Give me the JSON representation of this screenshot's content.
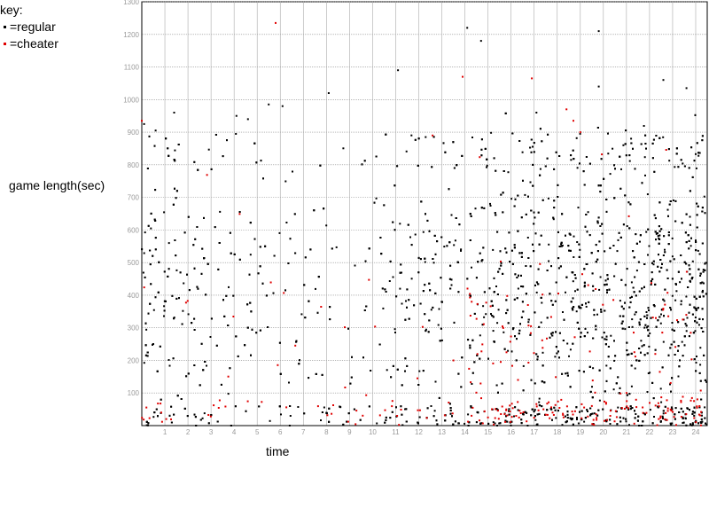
{
  "legend": {
    "title": "key:",
    "items": [
      {
        "label": "=regular",
        "color": "#000000"
      },
      {
        "label": "=cheater",
        "color": "#e00000"
      }
    ]
  },
  "chart_data": {
    "type": "scatter",
    "title": "",
    "xlabel": "time",
    "ylabel": "game length(sec)",
    "xlim": [
      0,
      24.5
    ],
    "ylim": [
      0,
      1300
    ],
    "xticks": [
      1,
      2,
      3,
      4,
      5,
      6,
      7,
      8,
      9,
      10,
      11,
      12,
      13,
      14,
      15,
      16,
      17,
      18,
      19,
      20,
      21,
      22,
      23,
      24
    ],
    "yticks": [
      100,
      200,
      300,
      400,
      500,
      600,
      700,
      800,
      900,
      1000,
      1100,
      1200,
      1300
    ],
    "grid": true,
    "legend_position": "top-left",
    "point_counts": {
      "regular": 2900,
      "cheater": 260
    },
    "series": [
      {
        "name": "regular",
        "color": "#000000",
        "sample_points": [
          [
            0.1,
            925
          ],
          [
            0.6,
            905
          ],
          [
            1.4,
            960
          ],
          [
            4.1,
            950
          ],
          [
            4.6,
            940
          ],
          [
            5.5,
            985
          ],
          [
            6.1,
            980
          ],
          [
            11.1,
            1090
          ],
          [
            14.1,
            1220
          ],
          [
            14.7,
            1180
          ],
          [
            19.8,
            1210
          ],
          [
            22.6,
            1060
          ],
          [
            23.6,
            1035
          ],
          [
            8.1,
            1020
          ],
          [
            19.8,
            1040
          ],
          [
            17.1,
            960
          ],
          [
            12.3,
            885
          ],
          [
            21.2,
            880
          ]
        ]
      },
      {
        "name": "cheater",
        "color": "#e00000",
        "sample_points": [
          [
            0.0,
            935
          ],
          [
            5.8,
            1235
          ],
          [
            13.9,
            1070
          ],
          [
            16.9,
            1065
          ],
          [
            18.4,
            970
          ],
          [
            18.7,
            935
          ],
          [
            12.6,
            890
          ],
          [
            19.0,
            900
          ],
          [
            17.8,
            40
          ],
          [
            19.5,
            60
          ],
          [
            20.3,
            30
          ],
          [
            21.0,
            100
          ],
          [
            22.4,
            20
          ],
          [
            16.3,
            140
          ],
          [
            15.0,
            25
          ],
          [
            13.5,
            200
          ]
        ]
      }
    ]
  }
}
